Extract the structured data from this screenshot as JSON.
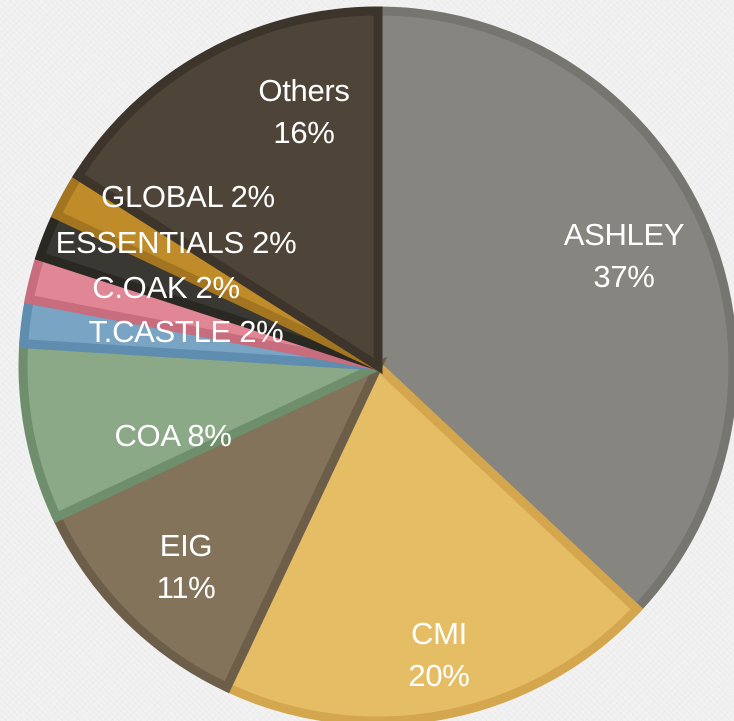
{
  "chart_data": {
    "type": "pie",
    "slices": [
      {
        "label": "ASHLEY",
        "value": 37,
        "display": "37%",
        "color": "#868580",
        "stroke": "#76756f",
        "label_lines": [
          "ASHLEY",
          "37%"
        ]
      },
      {
        "label": "CMI",
        "value": 20,
        "display": "20%",
        "color": "#e5bd65",
        "stroke": "#d4a64e",
        "label_lines": [
          "CMI",
          "20%"
        ]
      },
      {
        "label": "EIG",
        "value": 11,
        "display": "11%",
        "color": "#84735b",
        "stroke": "#6d5e4a",
        "label_lines": [
          "EIG",
          "11%"
        ]
      },
      {
        "label": "COA",
        "value": 8,
        "display": "8%",
        "color": "#8ba987",
        "stroke": "#6f8f6c",
        "label_lines": [
          "COA 8%"
        ]
      },
      {
        "label": "T.CASTLE",
        "value": 2,
        "display": "2%",
        "color": "#79a4c3",
        "stroke": "#5f8db0",
        "label_lines": [
          "T.CASTLE  2%"
        ]
      },
      {
        "label": "C.OAK",
        "value": 2,
        "display": "2%",
        "color": "#e18695",
        "stroke": "#c86d7d",
        "label_lines": [
          "C.OAK  2%"
        ]
      },
      {
        "label": "ESSENTIALS",
        "value": 2,
        "display": "2%",
        "color": "#3a3832",
        "stroke": "#2a2823",
        "label_lines": [
          "ESSENTIALS 2%"
        ]
      },
      {
        "label": "GLOBAL",
        "value": 2,
        "display": "2%",
        "color": "#c08c2a",
        "stroke": "#a37520",
        "label_lines": [
          "GLOBAL  2%"
        ]
      },
      {
        "label": "Others",
        "value": 16,
        "display": "16%",
        "color": "#4f4438",
        "stroke": "#3d342b",
        "label_lines": [
          "Others",
          "16%"
        ]
      }
    ],
    "start_angle_deg": 0,
    "direction": "clockwise",
    "legend": "none",
    "title": ""
  }
}
